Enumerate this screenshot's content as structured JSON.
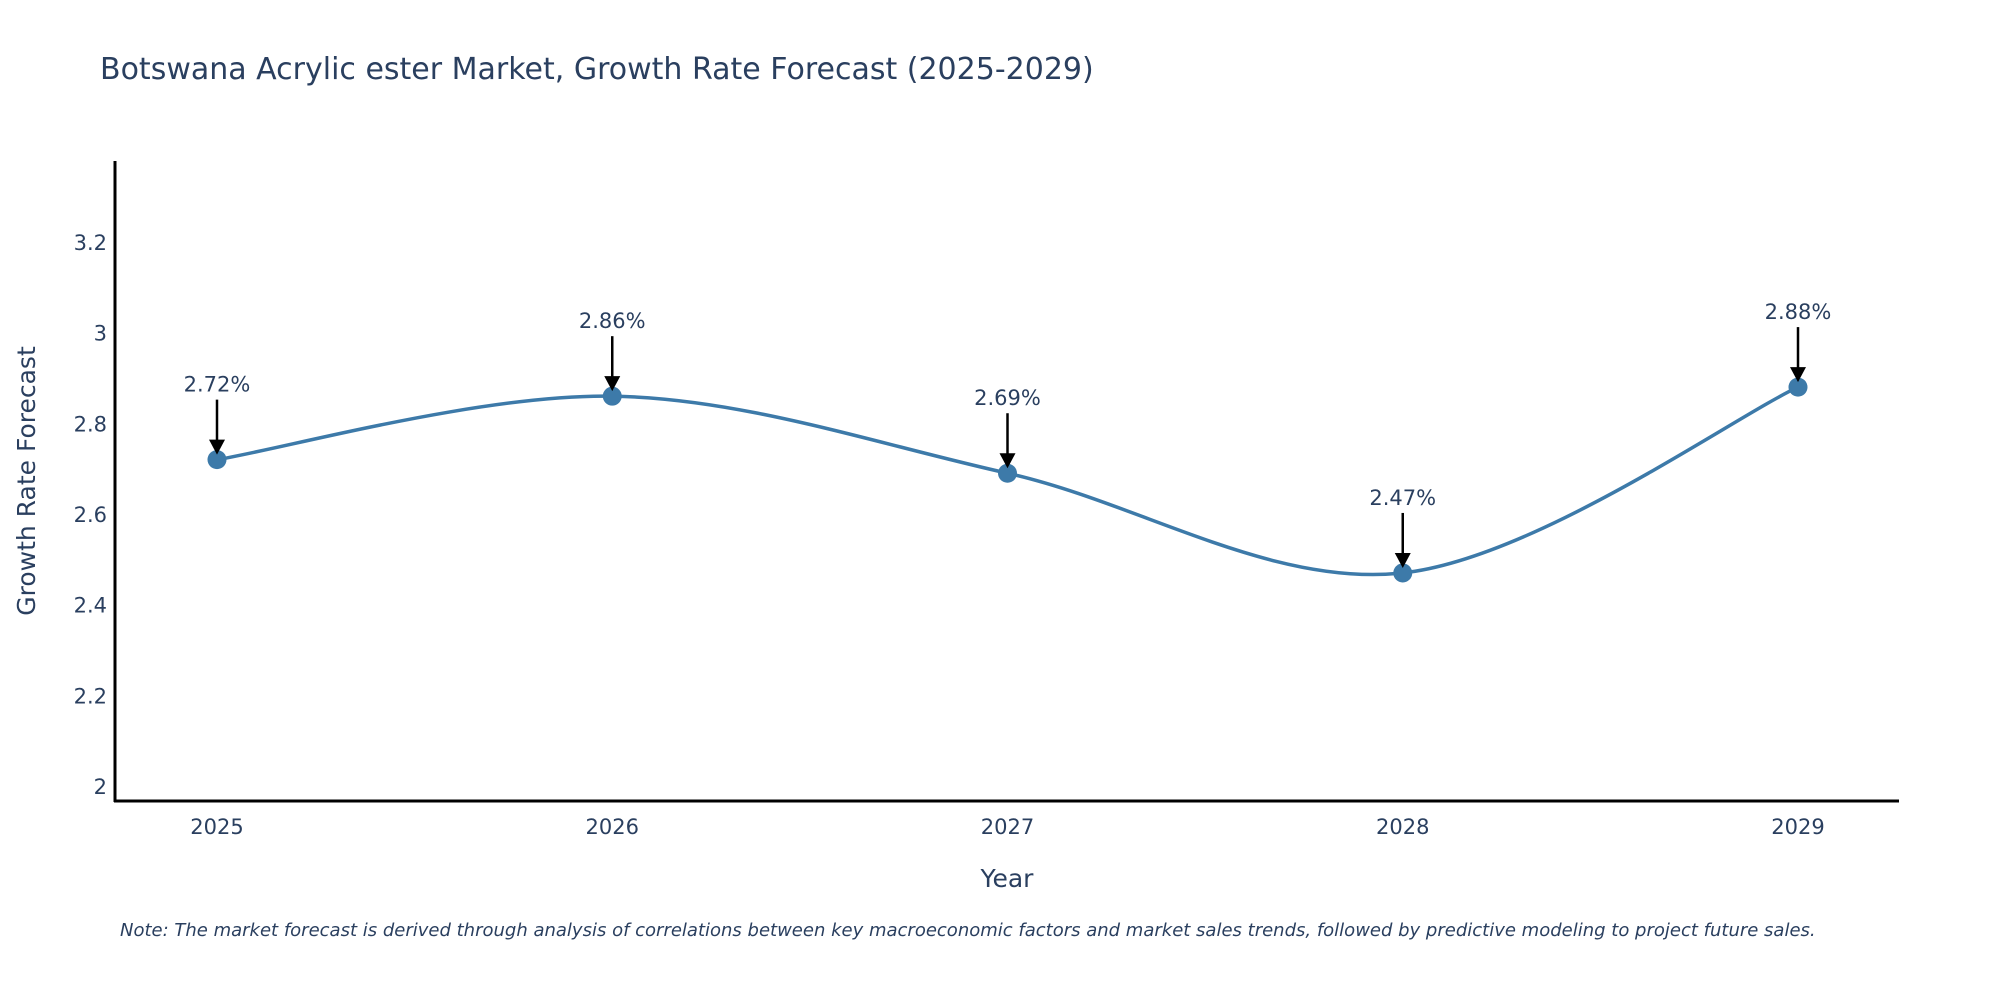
{
  "chart_data": {
    "type": "line",
    "title": "Botswana Acrylic ester Market, Growth Rate Forecast (2025-2029)",
    "xlabel": "Year",
    "ylabel": "Growth Rate Forecast",
    "x": [
      "2025",
      "2026",
      "2027",
      "2028",
      "2029"
    ],
    "series": [
      {
        "name": "Growth Rate Forecast",
        "values": [
          2.72,
          2.86,
          2.69,
          2.47,
          2.88
        ],
        "color": "#3d7aa9"
      }
    ],
    "annotations": [
      "2.72%",
      "2.86%",
      "2.69%",
      "2.47%",
      "2.88%"
    ],
    "yticks": [
      2,
      2.2,
      2.4,
      2.6,
      2.8,
      3,
      3.2
    ],
    "ytick_labels": [
      "2",
      "2.2",
      "2.4",
      "2.6",
      "2.8",
      "3",
      "3.2"
    ],
    "ylim": [
      1.97,
      3.38
    ],
    "grid": false,
    "line_shape": "spline",
    "note": "Note: The market forecast is derived through analysis of correlations between key macroeconomic factors and market sales trends, followed by predictive modeling to project future sales."
  }
}
